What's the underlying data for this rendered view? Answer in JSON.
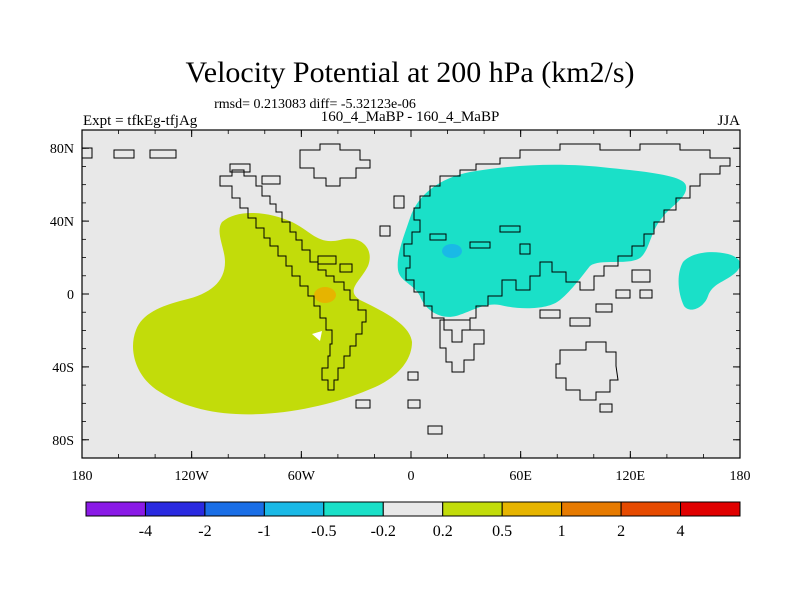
{
  "title": "Velocity Potential at 200 hPa (km2/s)",
  "stats_line": "rmsd= 0.213083 diff= -5.32123e-06",
  "left_label": "Expt = tfkEg-tfjAg",
  "center_label": "160_4_MaBP - 160_4_MaBP",
  "right_label": "JJA",
  "lat_ticks": [
    {
      "label": "80N",
      "value": 80
    },
    {
      "label": "40N",
      "value": 40
    },
    {
      "label": "0",
      "value": 0
    },
    {
      "label": "40S",
      "value": -40
    },
    {
      "label": "80S",
      "value": -80
    }
  ],
  "lon_ticks": [
    {
      "label": "180",
      "value": -180
    },
    {
      "label": "120W",
      "value": -120
    },
    {
      "label": "60W",
      "value": -60
    },
    {
      "label": "0",
      "value": 0
    },
    {
      "label": "60E",
      "value": 60
    },
    {
      "label": "120E",
      "value": 120
    },
    {
      "label": "180",
      "value": 180
    }
  ],
  "colorbar": {
    "colors": [
      "#8a1ae6",
      "#2a2ae0",
      "#1a6ee6",
      "#1ab9e6",
      "#1ae0c8",
      "#e8e8e8",
      "#c2dc0a",
      "#e6b400",
      "#e67a00",
      "#e64a00",
      "#e00000"
    ],
    "labels": [
      "-4",
      "-2",
      "-1",
      "-0.5",
      "-0.2",
      "0.2",
      "0.5",
      "1",
      "2",
      "4"
    ]
  },
  "colors": {
    "background": "#e8e8e8",
    "positive_region": "#c2dc0a",
    "negative_region": "#1ae0c8",
    "strong_negative": "#1ab9e6",
    "strong_positive": "#e6b400"
  }
}
